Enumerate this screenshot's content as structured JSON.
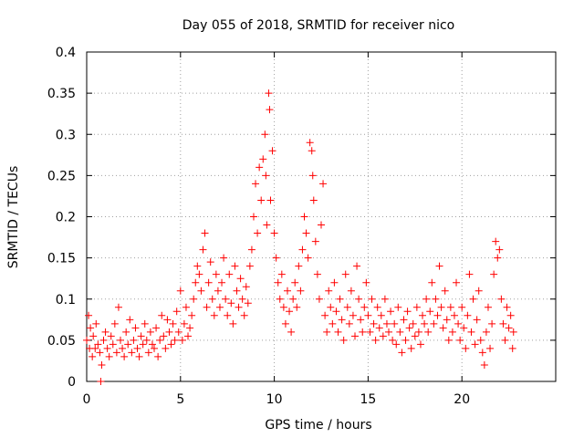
{
  "chart_data": {
    "type": "scatter",
    "title": "Day 055 of 2018, SRMTID for receiver nico",
    "xlabel": "GPS time / hours",
    "ylabel": "SRMTID / TECUs",
    "xlim": [
      0,
      25
    ],
    "ylim": [
      0,
      0.4
    ],
    "xticks": [
      0,
      5,
      10,
      15,
      20
    ],
    "xtick_labels": [
      "0",
      "5",
      "10",
      "15",
      "20"
    ],
    "yticks": [
      0,
      0.05,
      0.1,
      0.15,
      0.2,
      0.25,
      0.3,
      0.35,
      0.4
    ],
    "ytick_labels": [
      "0",
      "0.05",
      "0.1",
      "0.15",
      "0.2",
      "0.25",
      "0.3",
      "0.35",
      "0.4"
    ],
    "grid": true,
    "marker": "+",
    "color": "#ff0000",
    "series": [
      {
        "name": "SRMTID",
        "points": [
          [
            0.0,
            0.05
          ],
          [
            0.1,
            0.08
          ],
          [
            0.15,
            0.04
          ],
          [
            0.2,
            0.065
          ],
          [
            0.3,
            0.03
          ],
          [
            0.35,
            0.055
          ],
          [
            0.45,
            0.04
          ],
          [
            0.5,
            0.07
          ],
          [
            0.6,
            0.045
          ],
          [
            0.7,
            0.035
          ],
          [
            0.8,
            0.02
          ],
          [
            0.9,
            0.05
          ],
          [
            1.0,
            0.06
          ],
          [
            1.1,
            0.04
          ],
          [
            1.2,
            0.03
          ],
          [
            1.3,
            0.055
          ],
          [
            1.4,
            0.045
          ],
          [
            1.5,
            0.07
          ],
          [
            1.6,
            0.035
          ],
          [
            1.7,
            0.09
          ],
          [
            1.8,
            0.05
          ],
          [
            1.9,
            0.04
          ],
          [
            2.0,
            0.03
          ],
          [
            2.1,
            0.06
          ],
          [
            2.2,
            0.045
          ],
          [
            2.3,
            0.075
          ],
          [
            2.4,
            0.035
          ],
          [
            2.5,
            0.05
          ],
          [
            2.6,
            0.065
          ],
          [
            2.7,
            0.04
          ],
          [
            2.8,
            0.03
          ],
          [
            2.9,
            0.055
          ],
          [
            3.0,
            0.045
          ],
          [
            3.1,
            0.07
          ],
          [
            3.2,
            0.05
          ],
          [
            3.3,
            0.035
          ],
          [
            3.4,
            0.06
          ],
          [
            3.5,
            0.045
          ],
          [
            3.6,
            0.04
          ],
          [
            3.7,
            0.065
          ],
          [
            3.8,
            0.03
          ],
          [
            3.9,
            0.05
          ],
          [
            4.0,
            0.08
          ],
          [
            4.1,
            0.055
          ],
          [
            4.2,
            0.04
          ],
          [
            4.3,
            0.075
          ],
          [
            4.4,
            0.06
          ],
          [
            4.5,
            0.045
          ],
          [
            4.6,
            0.07
          ],
          [
            4.7,
            0.05
          ],
          [
            4.8,
            0.085
          ],
          [
            4.9,
            0.06
          ],
          [
            5.0,
            0.11
          ],
          [
            5.1,
            0.05
          ],
          [
            5.2,
            0.07
          ],
          [
            5.3,
            0.09
          ],
          [
            5.4,
            0.055
          ],
          [
            5.5,
            0.065
          ],
          [
            5.6,
            0.08
          ],
          [
            5.7,
            0.1
          ],
          [
            5.8,
            0.12
          ],
          [
            5.9,
            0.14
          ],
          [
            6.0,
            0.13
          ],
          [
            6.1,
            0.11
          ],
          [
            6.2,
            0.16
          ],
          [
            6.3,
            0.18
          ],
          [
            6.4,
            0.09
          ],
          [
            6.5,
            0.12
          ],
          [
            6.6,
            0.145
          ],
          [
            6.7,
            0.1
          ],
          [
            6.8,
            0.08
          ],
          [
            6.9,
            0.13
          ],
          [
            7.0,
            0.11
          ],
          [
            7.1,
            0.09
          ],
          [
            7.2,
            0.12
          ],
          [
            7.3,
            0.15
          ],
          [
            7.4,
            0.1
          ],
          [
            7.5,
            0.08
          ],
          [
            7.6,
            0.13
          ],
          [
            7.7,
            0.095
          ],
          [
            7.8,
            0.07
          ],
          [
            7.9,
            0.14
          ],
          [
            8.0,
            0.11
          ],
          [
            8.1,
            0.09
          ],
          [
            8.2,
            0.125
          ],
          [
            8.3,
            0.1
          ],
          [
            8.4,
            0.08
          ],
          [
            8.5,
            0.115
          ],
          [
            8.6,
            0.095
          ],
          [
            8.7,
            0.14
          ],
          [
            8.8,
            0.16
          ],
          [
            8.9,
            0.2
          ],
          [
            9.0,
            0.24
          ],
          [
            9.1,
            0.18
          ],
          [
            9.2,
            0.26
          ],
          [
            9.3,
            0.22
          ],
          [
            9.4,
            0.27
          ],
          [
            9.5,
            0.3
          ],
          [
            9.55,
            0.25
          ],
          [
            9.6,
            0.19
          ],
          [
            9.7,
            0.35
          ],
          [
            9.75,
            0.33
          ],
          [
            9.8,
            0.22
          ],
          [
            9.9,
            0.28
          ],
          [
            10.0,
            0.18
          ],
          [
            10.1,
            0.15
          ],
          [
            10.2,
            0.12
          ],
          [
            10.3,
            0.1
          ],
          [
            10.4,
            0.13
          ],
          [
            10.5,
            0.09
          ],
          [
            10.6,
            0.07
          ],
          [
            10.7,
            0.11
          ],
          [
            10.8,
            0.085
          ],
          [
            10.9,
            0.06
          ],
          [
            11.0,
            0.1
          ],
          [
            11.1,
            0.12
          ],
          [
            11.2,
            0.09
          ],
          [
            11.3,
            0.14
          ],
          [
            11.4,
            0.11
          ],
          [
            11.5,
            0.16
          ],
          [
            11.6,
            0.2
          ],
          [
            11.7,
            0.18
          ],
          [
            11.8,
            0.15
          ],
          [
            11.9,
            0.29
          ],
          [
            12.0,
            0.28
          ],
          [
            12.05,
            0.25
          ],
          [
            12.1,
            0.22
          ],
          [
            12.2,
            0.17
          ],
          [
            12.3,
            0.13
          ],
          [
            12.4,
            0.1
          ],
          [
            12.5,
            0.19
          ],
          [
            12.6,
            0.24
          ],
          [
            12.7,
            0.08
          ],
          [
            12.8,
            0.06
          ],
          [
            12.9,
            0.11
          ],
          [
            13.0,
            0.09
          ],
          [
            13.1,
            0.07
          ],
          [
            13.2,
            0.12
          ],
          [
            13.3,
            0.085
          ],
          [
            13.4,
            0.06
          ],
          [
            13.5,
            0.1
          ],
          [
            13.6,
            0.075
          ],
          [
            13.7,
            0.05
          ],
          [
            13.8,
            0.13
          ],
          [
            13.9,
            0.09
          ],
          [
            14.0,
            0.07
          ],
          [
            14.1,
            0.11
          ],
          [
            14.2,
            0.08
          ],
          [
            14.3,
            0.055
          ],
          [
            14.4,
            0.14
          ],
          [
            14.5,
            0.1
          ],
          [
            14.6,
            0.075
          ],
          [
            14.7,
            0.06
          ],
          [
            14.8,
            0.09
          ],
          [
            14.9,
            0.12
          ],
          [
            15.0,
            0.08
          ],
          [
            15.1,
            0.06
          ],
          [
            15.2,
            0.1
          ],
          [
            15.3,
            0.07
          ],
          [
            15.4,
            0.05
          ],
          [
            15.5,
            0.09
          ],
          [
            15.6,
            0.065
          ],
          [
            15.7,
            0.08
          ],
          [
            15.8,
            0.055
          ],
          [
            15.9,
            0.1
          ],
          [
            16.0,
            0.07
          ],
          [
            16.1,
            0.06
          ],
          [
            16.2,
            0.085
          ],
          [
            16.3,
            0.05
          ],
          [
            16.4,
            0.07
          ],
          [
            16.5,
            0.045
          ],
          [
            16.6,
            0.09
          ],
          [
            16.7,
            0.06
          ],
          [
            16.8,
            0.035
          ],
          [
            16.9,
            0.075
          ],
          [
            17.0,
            0.05
          ],
          [
            17.1,
            0.085
          ],
          [
            17.2,
            0.065
          ],
          [
            17.3,
            0.04
          ],
          [
            17.4,
            0.07
          ],
          [
            17.5,
            0.055
          ],
          [
            17.6,
            0.09
          ],
          [
            17.7,
            0.06
          ],
          [
            17.8,
            0.045
          ],
          [
            17.9,
            0.08
          ],
          [
            18.0,
            0.07
          ],
          [
            18.1,
            0.1
          ],
          [
            18.2,
            0.06
          ],
          [
            18.3,
            0.085
          ],
          [
            18.4,
            0.12
          ],
          [
            18.5,
            0.07
          ],
          [
            18.6,
            0.1
          ],
          [
            18.7,
            0.08
          ],
          [
            18.8,
            0.14
          ],
          [
            18.9,
            0.09
          ],
          [
            19.0,
            0.065
          ],
          [
            19.1,
            0.11
          ],
          [
            19.2,
            0.075
          ],
          [
            19.3,
            0.05
          ],
          [
            19.4,
            0.09
          ],
          [
            19.5,
            0.06
          ],
          [
            19.6,
            0.08
          ],
          [
            19.7,
            0.12
          ],
          [
            19.8,
            0.07
          ],
          [
            19.9,
            0.05
          ],
          [
            20.0,
            0.09
          ],
          [
            20.1,
            0.065
          ],
          [
            20.2,
            0.04
          ],
          [
            20.3,
            0.08
          ],
          [
            20.4,
            0.13
          ],
          [
            20.5,
            0.06
          ],
          [
            20.6,
            0.1
          ],
          [
            20.7,
            0.045
          ],
          [
            20.8,
            0.075
          ],
          [
            20.9,
            0.11
          ],
          [
            21.0,
            0.05
          ],
          [
            21.1,
            0.035
          ],
          [
            21.2,
            0.02
          ],
          [
            21.3,
            0.06
          ],
          [
            21.4,
            0.09
          ],
          [
            21.5,
            0.04
          ],
          [
            21.6,
            0.07
          ],
          [
            21.7,
            0.13
          ],
          [
            21.8,
            0.17
          ],
          [
            21.9,
            0.15
          ],
          [
            22.0,
            0.16
          ],
          [
            22.1,
            0.1
          ],
          [
            22.2,
            0.07
          ],
          [
            22.3,
            0.05
          ],
          [
            22.4,
            0.09
          ],
          [
            22.5,
            0.065
          ],
          [
            22.6,
            0.08
          ],
          [
            22.7,
            0.04
          ],
          [
            22.75,
            0.06
          ],
          [
            0.75,
            0.0
          ]
        ]
      }
    ]
  }
}
